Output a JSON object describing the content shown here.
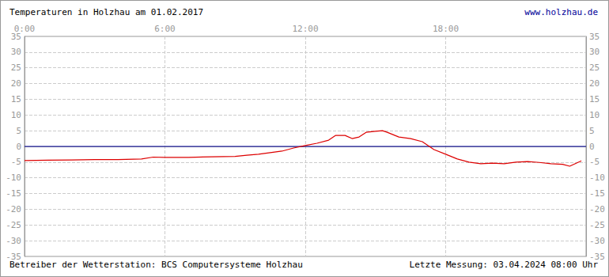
{
  "chart_data": {
    "type": "line",
    "title": "Temperaturen in Holzhau am 01.02.2017",
    "url": "www.holzhau.de",
    "footer_left": "Betreiber der Wetterstation: BCS Computersysteme Holzhau",
    "footer_right": "Letzte Messung: 03.04.2024 08:00 Uhr",
    "x": [
      0,
      1,
      2,
      3,
      4,
      5,
      5.5,
      6,
      7,
      8,
      9,
      9.5,
      10,
      10.5,
      11,
      11.5,
      12,
      12.5,
      13,
      13.3,
      13.7,
      14,
      14.3,
      14.6,
      15,
      15.3,
      15.5,
      16,
      16.5,
      17,
      17.3,
      17.5,
      18,
      18.5,
      19,
      19.5,
      20,
      20.5,
      21,
      21.5,
      22,
      22.5,
      23,
      23.3,
      23.8
    ],
    "values": [
      -4.5,
      -4.4,
      -4.3,
      -4.2,
      -4.2,
      -4.0,
      -3.4,
      -3.5,
      -3.5,
      -3.3,
      -3.2,
      -2.8,
      -2.5,
      -2,
      -1.5,
      -0.5,
      0.3,
      1,
      2,
      3.5,
      3.5,
      2.5,
      3,
      4.5,
      4.8,
      5,
      4.5,
      3,
      2.5,
      1.5,
      0,
      -1,
      -2.5,
      -4,
      -5,
      -5.5,
      -5.3,
      -5.5,
      -5,
      -4.8,
      -5.1,
      -5.5,
      -5.7,
      -6.3,
      -4.6
    ],
    "color": "#dd0000",
    "xlim": [
      0,
      24
    ],
    "xticks": [
      {
        "value": 0,
        "label": "0:00"
      },
      {
        "value": 6,
        "label": "6:00"
      },
      {
        "value": 12,
        "label": "12:00"
      },
      {
        "value": 18,
        "label": "18:00"
      }
    ],
    "ylim": [
      -35,
      35
    ],
    "yticks": [
      -35,
      -30,
      -25,
      -20,
      -15,
      -10,
      -5,
      0,
      5,
      10,
      15,
      20,
      25,
      30,
      35
    ],
    "reference_line": {
      "value": 0,
      "color": "#000099"
    },
    "grid": true
  }
}
